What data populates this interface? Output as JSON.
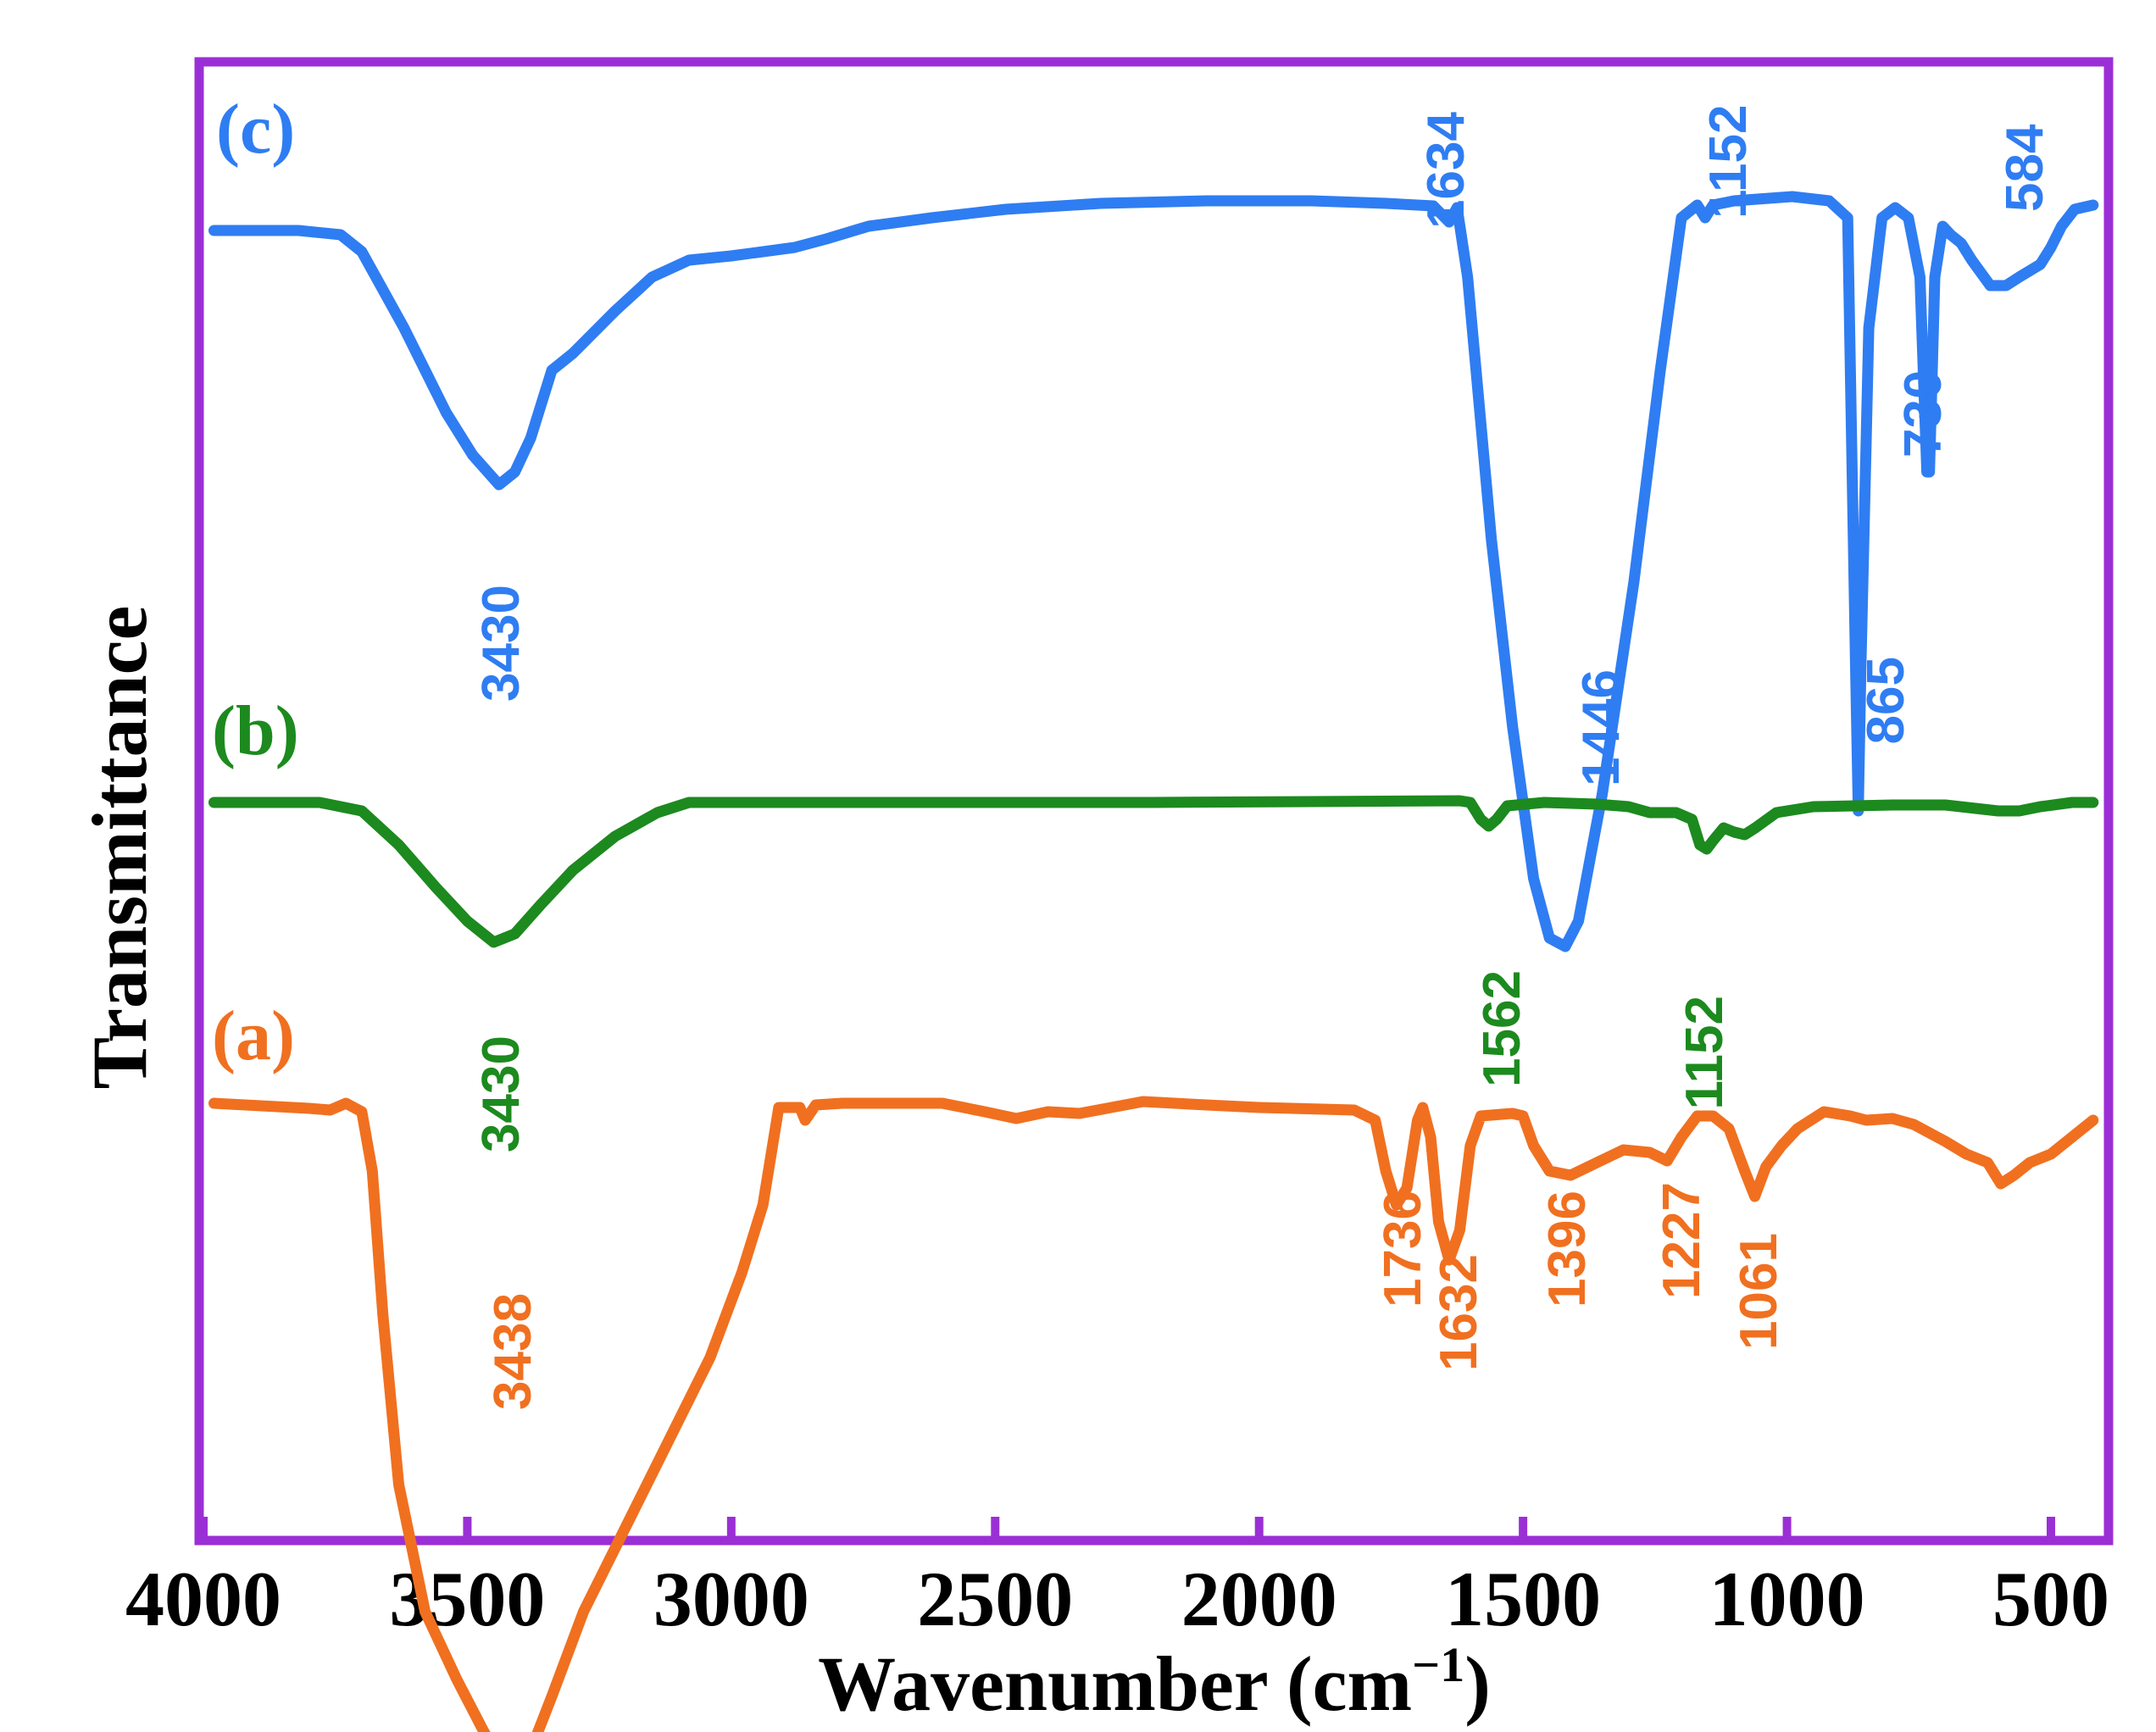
{
  "chart_data": {
    "type": "line",
    "title": "",
    "xlabel": "Wavenumber (cm",
    "xlabel_sup": "−1",
    "xlabel_close": ")",
    "ylabel": "Transmittance",
    "xlim": [
      4000,
      400
    ],
    "x_ticks": [
      4000,
      3500,
      3000,
      2500,
      2000,
      1500,
      1000,
      500
    ],
    "x_tick_labels": [
      "4000",
      "3500",
      "3000",
      "2500",
      "2000",
      "1500",
      "1000",
      "500"
    ],
    "y_ticks_shown": false,
    "frame_color": "#9b2fd6",
    "series": [
      {
        "name": "(c)",
        "color": "#2f7df2",
        "points": [
          [
            3980,
            0.035
          ],
          [
            3820,
            0.035
          ],
          [
            3740,
            0.04
          ],
          [
            3700,
            0.06
          ],
          [
            3620,
            0.15
          ],
          [
            3540,
            0.25
          ],
          [
            3490,
            0.3
          ],
          [
            3440,
            0.335
          ],
          [
            3410,
            0.32
          ],
          [
            3380,
            0.28
          ],
          [
            3340,
            0.2
          ],
          [
            3300,
            0.18
          ],
          [
            3220,
            0.13
          ],
          [
            3150,
            0.09
          ],
          [
            3080,
            0.07
          ],
          [
            3000,
            0.065
          ],
          [
            2880,
            0.055
          ],
          [
            2820,
            0.045
          ],
          [
            2740,
            0.03
          ],
          [
            2620,
            0.02
          ],
          [
            2480,
            0.01
          ],
          [
            2300,
            0.003
          ],
          [
            2100,
            0.0
          ],
          [
            1900,
            0.0
          ],
          [
            1760,
            0.003
          ],
          [
            1670,
            0.006
          ],
          [
            1640,
            0.025
          ],
          [
            1625,
            0.008
          ],
          [
            1605,
            0.09
          ],
          [
            1560,
            0.4
          ],
          [
            1520,
            0.62
          ],
          [
            1480,
            0.8
          ],
          [
            1450,
            0.87
          ],
          [
            1420,
            0.88
          ],
          [
            1395,
            0.85
          ],
          [
            1350,
            0.7
          ],
          [
            1290,
            0.45
          ],
          [
            1240,
            0.2
          ],
          [
            1200,
            0.02
          ],
          [
            1170,
            0.005
          ],
          [
            1155,
            0.02
          ],
          [
            1140,
            0.005
          ],
          [
            1100,
            0.0
          ],
          [
            990,
            -0.005
          ],
          [
            920,
            0.0
          ],
          [
            885,
            0.02
          ],
          [
            870,
            0.55
          ],
          [
            865,
            0.72
          ],
          [
            860,
            0.55
          ],
          [
            845,
            0.15
          ],
          [
            820,
            0.02
          ],
          [
            795,
            0.008
          ],
          [
            770,
            0.02
          ],
          [
            748,
            0.09
          ],
          [
            735,
            0.32
          ],
          [
            730,
            0.32
          ],
          [
            720,
            0.09
          ],
          [
            705,
            0.03
          ],
          [
            690,
            0.04
          ],
          [
            670,
            0.05
          ],
          [
            650,
            0.07
          ],
          [
            615,
            0.1
          ],
          [
            585,
            0.1
          ],
          [
            560,
            0.09
          ],
          [
            520,
            0.075
          ],
          [
            500,
            0.055
          ],
          [
            480,
            0.03
          ],
          [
            455,
            0.01
          ],
          [
            420,
            0.005
          ]
        ]
      },
      {
        "name": "(b)",
        "color": "#1c8a1e",
        "points": [
          [
            3980,
            0.0
          ],
          [
            3780,
            0.0
          ],
          [
            3700,
            0.01
          ],
          [
            3630,
            0.05
          ],
          [
            3560,
            0.1
          ],
          [
            3500,
            0.14
          ],
          [
            3450,
            0.165
          ],
          [
            3410,
            0.155
          ],
          [
            3360,
            0.12
          ],
          [
            3300,
            0.08
          ],
          [
            3220,
            0.04
          ],
          [
            3140,
            0.012
          ],
          [
            3080,
            0.0
          ],
          [
            3000,
            0.0
          ],
          [
            2200,
            0.0
          ],
          [
            1620,
            -0.002
          ],
          [
            1600,
            0.0
          ],
          [
            1580,
            0.02
          ],
          [
            1565,
            0.028
          ],
          [
            1550,
            0.02
          ],
          [
            1530,
            0.004
          ],
          [
            1460,
            0.0
          ],
          [
            1360,
            0.002
          ],
          [
            1300,
            0.005
          ],
          [
            1260,
            0.012
          ],
          [
            1210,
            0.012
          ],
          [
            1180,
            0.02
          ],
          [
            1165,
            0.05
          ],
          [
            1152,
            0.055
          ],
          [
            1140,
            0.045
          ],
          [
            1120,
            0.03
          ],
          [
            1100,
            0.035
          ],
          [
            1080,
            0.038
          ],
          [
            1060,
            0.03
          ],
          [
            1020,
            0.012
          ],
          [
            950,
            0.005
          ],
          [
            800,
            0.003
          ],
          [
            700,
            0.003
          ],
          [
            600,
            0.01
          ],
          [
            560,
            0.01
          ],
          [
            520,
            0.005
          ],
          [
            460,
            0.0
          ],
          [
            420,
            0.0
          ]
        ]
      },
      {
        "name": "(a)",
        "color": "#f07020",
        "points": [
          [
            3980,
            0.0
          ],
          [
            3800,
            0.006
          ],
          [
            3760,
            0.008
          ],
          [
            3730,
            0.0
          ],
          [
            3700,
            0.01
          ],
          [
            3680,
            0.08
          ],
          [
            3660,
            0.25
          ],
          [
            3630,
            0.45
          ],
          [
            3580,
            0.6
          ],
          [
            3520,
            0.68
          ],
          [
            3470,
            0.74
          ],
          [
            3430,
            0.785
          ],
          [
            3390,
            0.78
          ],
          [
            3340,
            0.7
          ],
          [
            3280,
            0.6
          ],
          [
            3200,
            0.5
          ],
          [
            3120,
            0.4
          ],
          [
            3040,
            0.3
          ],
          [
            2980,
            0.2
          ],
          [
            2940,
            0.12
          ],
          [
            2910,
            0.005
          ],
          [
            2870,
            0.005
          ],
          [
            2860,
            0.02
          ],
          [
            2840,
            0.002
          ],
          [
            2790,
            0.0
          ],
          [
            2600,
            0.0
          ],
          [
            2520,
            0.01
          ],
          [
            2460,
            0.018
          ],
          [
            2400,
            0.01
          ],
          [
            2340,
            0.012
          ],
          [
            2280,
            0.005
          ],
          [
            2220,
            -0.002
          ],
          [
            2100,
            0.002
          ],
          [
            2000,
            0.005
          ],
          [
            1820,
            0.008
          ],
          [
            1780,
            0.02
          ],
          [
            1760,
            0.08
          ],
          [
            1740,
            0.12
          ],
          [
            1720,
            0.1
          ],
          [
            1700,
            0.02
          ],
          [
            1690,
            0.005
          ],
          [
            1675,
            0.04
          ],
          [
            1660,
            0.14
          ],
          [
            1640,
            0.185
          ],
          [
            1620,
            0.15
          ],
          [
            1600,
            0.05
          ],
          [
            1580,
            0.015
          ],
          [
            1520,
            0.012
          ],
          [
            1500,
            0.015
          ],
          [
            1480,
            0.05
          ],
          [
            1450,
            0.08
          ],
          [
            1410,
            0.085
          ],
          [
            1360,
            0.07
          ],
          [
            1310,
            0.055
          ],
          [
            1260,
            0.058
          ],
          [
            1227,
            0.068
          ],
          [
            1200,
            0.04
          ],
          [
            1170,
            0.015
          ],
          [
            1140,
            0.015
          ],
          [
            1110,
            0.03
          ],
          [
            1080,
            0.08
          ],
          [
            1061,
            0.11
          ],
          [
            1040,
            0.075
          ],
          [
            1010,
            0.05
          ],
          [
            980,
            0.03
          ],
          [
            930,
            0.01
          ],
          [
            880,
            0.015
          ],
          [
            850,
            0.02
          ],
          [
            800,
            0.018
          ],
          [
            760,
            0.025
          ],
          [
            700,
            0.045
          ],
          [
            660,
            0.06
          ],
          [
            620,
            0.07
          ],
          [
            595,
            0.095
          ],
          [
            570,
            0.085
          ],
          [
            540,
            0.07
          ],
          [
            500,
            0.06
          ],
          [
            460,
            0.04
          ],
          [
            420,
            0.02
          ]
        ]
      }
    ],
    "series_labels": [
      {
        "text": "(c)",
        "color": "#2f7df2",
        "wavenumber": 3930,
        "level": 0.0
      },
      {
        "text": "(b)",
        "color": "#1c8a1e",
        "wavenumber": 3930,
        "level": 0.0
      },
      {
        "text": "(a)",
        "color": "#f07020",
        "wavenumber": 3930,
        "level": 0.0
      }
    ],
    "annotations": [
      {
        "text": "3430",
        "series": "(c)",
        "wavenumber": 3430
      },
      {
        "text": "1634",
        "series": "(c)",
        "wavenumber": 1634
      },
      {
        "text": "1446",
        "series": "(c)",
        "wavenumber": 1446
      },
      {
        "text": "1152",
        "series": "(c)",
        "wavenumber": 1152
      },
      {
        "text": "865",
        "series": "(c)",
        "wavenumber": 865
      },
      {
        "text": "730",
        "series": "(c)",
        "wavenumber": 730
      },
      {
        "text": "584",
        "series": "(c)",
        "wavenumber": 584
      },
      {
        "text": "3430",
        "series": "(b)",
        "wavenumber": 3430
      },
      {
        "text": "1562",
        "series": "(b)",
        "wavenumber": 1562
      },
      {
        "text": "1152",
        "series": "(b)",
        "wavenumber": 1152
      },
      {
        "text": "3438",
        "series": "(a)",
        "wavenumber": 3438
      },
      {
        "text": "1736",
        "series": "(a)",
        "wavenumber": 1736
      },
      {
        "text": "1632",
        "series": "(a)",
        "wavenumber": 1632
      },
      {
        "text": "1396",
        "series": "(a)",
        "wavenumber": 1396
      },
      {
        "text": "1227",
        "series": "(a)",
        "wavenumber": 1227
      },
      {
        "text": "1061",
        "series": "(a)",
        "wavenumber": 1061
      }
    ]
  }
}
